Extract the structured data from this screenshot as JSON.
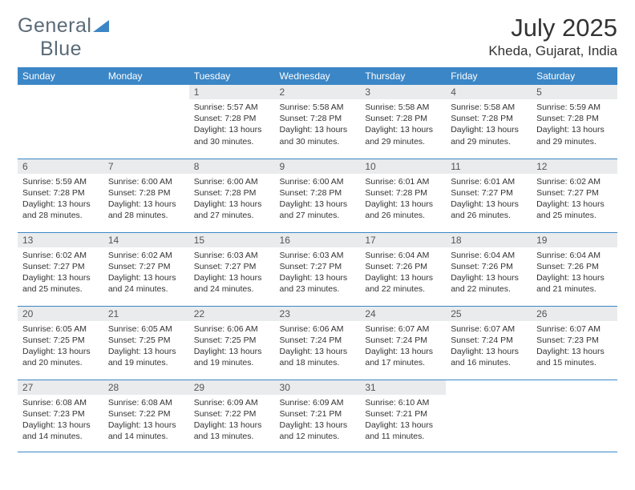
{
  "brand": {
    "name_a": "General",
    "name_b": "Blue"
  },
  "title": "July 2025",
  "location": "Kheda, Gujarat, India",
  "colors": {
    "header_bg": "#3b86c6",
    "header_text": "#ffffff",
    "daynum_bg": "#e9ebed",
    "rule": "#3b86c6",
    "logo_triangle": "#3b86c6",
    "text": "#333333"
  },
  "day_headers": [
    "Sunday",
    "Monday",
    "Tuesday",
    "Wednesday",
    "Thursday",
    "Friday",
    "Saturday"
  ],
  "weeks": [
    [
      {
        "empty": true
      },
      {
        "empty": true
      },
      {
        "day": "1",
        "sunrise": "Sunrise: 5:57 AM",
        "sunset": "Sunset: 7:28 PM",
        "daylight1": "Daylight: 13 hours",
        "daylight2": "and 30 minutes."
      },
      {
        "day": "2",
        "sunrise": "Sunrise: 5:58 AM",
        "sunset": "Sunset: 7:28 PM",
        "daylight1": "Daylight: 13 hours",
        "daylight2": "and 30 minutes."
      },
      {
        "day": "3",
        "sunrise": "Sunrise: 5:58 AM",
        "sunset": "Sunset: 7:28 PM",
        "daylight1": "Daylight: 13 hours",
        "daylight2": "and 29 minutes."
      },
      {
        "day": "4",
        "sunrise": "Sunrise: 5:58 AM",
        "sunset": "Sunset: 7:28 PM",
        "daylight1": "Daylight: 13 hours",
        "daylight2": "and 29 minutes."
      },
      {
        "day": "5",
        "sunrise": "Sunrise: 5:59 AM",
        "sunset": "Sunset: 7:28 PM",
        "daylight1": "Daylight: 13 hours",
        "daylight2": "and 29 minutes."
      }
    ],
    [
      {
        "day": "6",
        "sunrise": "Sunrise: 5:59 AM",
        "sunset": "Sunset: 7:28 PM",
        "daylight1": "Daylight: 13 hours",
        "daylight2": "and 28 minutes."
      },
      {
        "day": "7",
        "sunrise": "Sunrise: 6:00 AM",
        "sunset": "Sunset: 7:28 PM",
        "daylight1": "Daylight: 13 hours",
        "daylight2": "and 28 minutes."
      },
      {
        "day": "8",
        "sunrise": "Sunrise: 6:00 AM",
        "sunset": "Sunset: 7:28 PM",
        "daylight1": "Daylight: 13 hours",
        "daylight2": "and 27 minutes."
      },
      {
        "day": "9",
        "sunrise": "Sunrise: 6:00 AM",
        "sunset": "Sunset: 7:28 PM",
        "daylight1": "Daylight: 13 hours",
        "daylight2": "and 27 minutes."
      },
      {
        "day": "10",
        "sunrise": "Sunrise: 6:01 AM",
        "sunset": "Sunset: 7:28 PM",
        "daylight1": "Daylight: 13 hours",
        "daylight2": "and 26 minutes."
      },
      {
        "day": "11",
        "sunrise": "Sunrise: 6:01 AM",
        "sunset": "Sunset: 7:27 PM",
        "daylight1": "Daylight: 13 hours",
        "daylight2": "and 26 minutes."
      },
      {
        "day": "12",
        "sunrise": "Sunrise: 6:02 AM",
        "sunset": "Sunset: 7:27 PM",
        "daylight1": "Daylight: 13 hours",
        "daylight2": "and 25 minutes."
      }
    ],
    [
      {
        "day": "13",
        "sunrise": "Sunrise: 6:02 AM",
        "sunset": "Sunset: 7:27 PM",
        "daylight1": "Daylight: 13 hours",
        "daylight2": "and 25 minutes."
      },
      {
        "day": "14",
        "sunrise": "Sunrise: 6:02 AM",
        "sunset": "Sunset: 7:27 PM",
        "daylight1": "Daylight: 13 hours",
        "daylight2": "and 24 minutes."
      },
      {
        "day": "15",
        "sunrise": "Sunrise: 6:03 AM",
        "sunset": "Sunset: 7:27 PM",
        "daylight1": "Daylight: 13 hours",
        "daylight2": "and 24 minutes."
      },
      {
        "day": "16",
        "sunrise": "Sunrise: 6:03 AM",
        "sunset": "Sunset: 7:27 PM",
        "daylight1": "Daylight: 13 hours",
        "daylight2": "and 23 minutes."
      },
      {
        "day": "17",
        "sunrise": "Sunrise: 6:04 AM",
        "sunset": "Sunset: 7:26 PM",
        "daylight1": "Daylight: 13 hours",
        "daylight2": "and 22 minutes."
      },
      {
        "day": "18",
        "sunrise": "Sunrise: 6:04 AM",
        "sunset": "Sunset: 7:26 PM",
        "daylight1": "Daylight: 13 hours",
        "daylight2": "and 22 minutes."
      },
      {
        "day": "19",
        "sunrise": "Sunrise: 6:04 AM",
        "sunset": "Sunset: 7:26 PM",
        "daylight1": "Daylight: 13 hours",
        "daylight2": "and 21 minutes."
      }
    ],
    [
      {
        "day": "20",
        "sunrise": "Sunrise: 6:05 AM",
        "sunset": "Sunset: 7:25 PM",
        "daylight1": "Daylight: 13 hours",
        "daylight2": "and 20 minutes."
      },
      {
        "day": "21",
        "sunrise": "Sunrise: 6:05 AM",
        "sunset": "Sunset: 7:25 PM",
        "daylight1": "Daylight: 13 hours",
        "daylight2": "and 19 minutes."
      },
      {
        "day": "22",
        "sunrise": "Sunrise: 6:06 AM",
        "sunset": "Sunset: 7:25 PM",
        "daylight1": "Daylight: 13 hours",
        "daylight2": "and 19 minutes."
      },
      {
        "day": "23",
        "sunrise": "Sunrise: 6:06 AM",
        "sunset": "Sunset: 7:24 PM",
        "daylight1": "Daylight: 13 hours",
        "daylight2": "and 18 minutes."
      },
      {
        "day": "24",
        "sunrise": "Sunrise: 6:07 AM",
        "sunset": "Sunset: 7:24 PM",
        "daylight1": "Daylight: 13 hours",
        "daylight2": "and 17 minutes."
      },
      {
        "day": "25",
        "sunrise": "Sunrise: 6:07 AM",
        "sunset": "Sunset: 7:24 PM",
        "daylight1": "Daylight: 13 hours",
        "daylight2": "and 16 minutes."
      },
      {
        "day": "26",
        "sunrise": "Sunrise: 6:07 AM",
        "sunset": "Sunset: 7:23 PM",
        "daylight1": "Daylight: 13 hours",
        "daylight2": "and 15 minutes."
      }
    ],
    [
      {
        "day": "27",
        "sunrise": "Sunrise: 6:08 AM",
        "sunset": "Sunset: 7:23 PM",
        "daylight1": "Daylight: 13 hours",
        "daylight2": "and 14 minutes."
      },
      {
        "day": "28",
        "sunrise": "Sunrise: 6:08 AM",
        "sunset": "Sunset: 7:22 PM",
        "daylight1": "Daylight: 13 hours",
        "daylight2": "and 14 minutes."
      },
      {
        "day": "29",
        "sunrise": "Sunrise: 6:09 AM",
        "sunset": "Sunset: 7:22 PM",
        "daylight1": "Daylight: 13 hours",
        "daylight2": "and 13 minutes."
      },
      {
        "day": "30",
        "sunrise": "Sunrise: 6:09 AM",
        "sunset": "Sunset: 7:21 PM",
        "daylight1": "Daylight: 13 hours",
        "daylight2": "and 12 minutes."
      },
      {
        "day": "31",
        "sunrise": "Sunrise: 6:10 AM",
        "sunset": "Sunset: 7:21 PM",
        "daylight1": "Daylight: 13 hours",
        "daylight2": "and 11 minutes."
      },
      {
        "empty": true
      },
      {
        "empty": true
      }
    ]
  ]
}
